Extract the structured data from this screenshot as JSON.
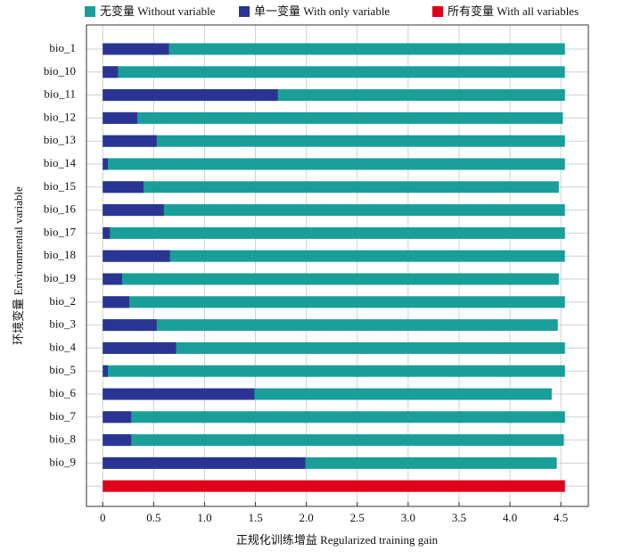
{
  "chart_data": {
    "type": "bar",
    "orientation": "horizontal",
    "xlabel": "正规化训练增益 Regularized training gain",
    "ylabel": "环境变量 Environmental variable",
    "categories": [
      "bio_1",
      "bio_10",
      "bio_11",
      "bio_12",
      "bio_13",
      "bio_14",
      "bio_15",
      "bio_16",
      "bio_17",
      "bio_18",
      "bio_19",
      "bio_2",
      "bio_3",
      "bio_4",
      "bio_5",
      "bio_6",
      "bio_7",
      "bio_8",
      "bio_9",
      null
    ],
    "series": [
      {
        "name": "无变量 Without variable",
        "color": "#1a9e9a",
        "values": [
          4.54,
          4.54,
          4.54,
          4.52,
          4.54,
          4.54,
          4.48,
          4.54,
          4.54,
          4.54,
          4.48,
          4.54,
          4.47,
          4.54,
          4.54,
          4.41,
          4.54,
          4.53,
          4.46,
          null
        ]
      },
      {
        "name": "单一变量 With only variable",
        "color": "#2a3593",
        "values": [
          0.65,
          0.15,
          1.72,
          0.34,
          0.53,
          0.05,
          0.4,
          0.6,
          0.07,
          0.66,
          0.19,
          0.26,
          0.53,
          0.72,
          0.05,
          1.49,
          0.28,
          0.28,
          1.99,
          null
        ]
      },
      {
        "name": "所有变量 With all variables",
        "color": "#e0001b",
        "values": [
          null,
          null,
          null,
          null,
          null,
          null,
          null,
          null,
          null,
          null,
          null,
          null,
          null,
          null,
          null,
          null,
          null,
          null,
          null,
          4.54
        ]
      }
    ],
    "xlim": [
      -0.16,
      4.77
    ],
    "xticks": [
      0,
      0.5,
      {
        "value": 1,
        "label": "1.0"
      },
      1.5,
      {
        "value": 2,
        "label": "2.0"
      },
      2.5,
      {
        "value": 3,
        "label": "3.0"
      },
      3.5,
      {
        "value": 4,
        "label": "4.0"
      },
      4.5
    ],
    "grid": true
  }
}
